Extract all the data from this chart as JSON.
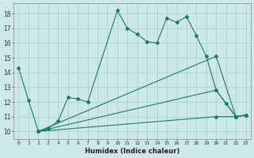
{
  "xlabel": "Humidex (Indice chaleur)",
  "background_color": "#cde8e8",
  "grid_color": "#aacece",
  "line_color": "#1a7a6a",
  "xlim": [
    -0.5,
    23.5
  ],
  "ylim": [
    9.5,
    18.7
  ],
  "xticks": [
    0,
    1,
    2,
    3,
    4,
    5,
    6,
    7,
    8,
    9,
    10,
    11,
    12,
    13,
    14,
    15,
    16,
    17,
    18,
    19,
    20,
    21,
    22,
    23
  ],
  "yticks": [
    10,
    11,
    12,
    13,
    14,
    15,
    16,
    17,
    18
  ],
  "series": [
    {
      "x": [
        0,
        1,
        2,
        3,
        4,
        5,
        6,
        7,
        10,
        11,
        12,
        13,
        14,
        15,
        16,
        17,
        18,
        19,
        20,
        21,
        22,
        23
      ],
      "y": [
        14.3,
        12.1,
        10.0,
        10.2,
        10.7,
        12.3,
        12.2,
        12.0,
        18.2,
        17.0,
        16.6,
        16.1,
        16.0,
        17.7,
        17.4,
        17.8,
        16.5,
        15.1,
        12.8,
        11.9,
        11.0,
        11.1
      ]
    },
    {
      "x": [
        2,
        20,
        22,
        23
      ],
      "y": [
        10.0,
        15.1,
        11.0,
        11.1
      ]
    },
    {
      "x": [
        2,
        20,
        22,
        23
      ],
      "y": [
        10.0,
        12.8,
        11.0,
        11.1
      ]
    },
    {
      "x": [
        2,
        20,
        22,
        23
      ],
      "y": [
        10.0,
        11.0,
        11.0,
        11.1
      ]
    }
  ]
}
